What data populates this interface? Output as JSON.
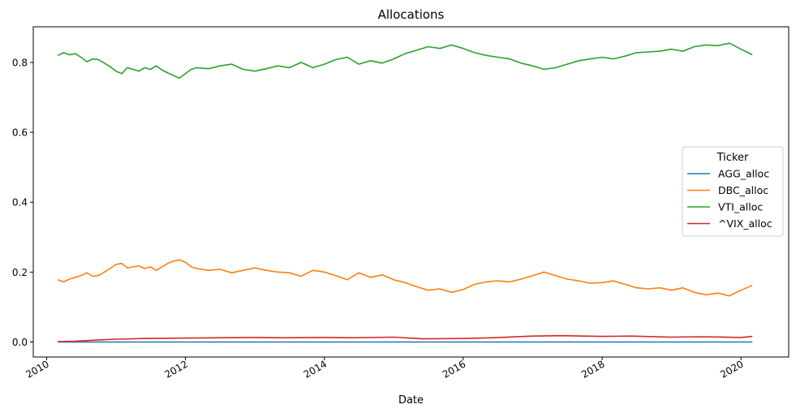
{
  "chart_data": {
    "type": "line",
    "title": "Allocations",
    "xlabel": "Date",
    "ylabel": "",
    "xlim": [
      "2009-10-23",
      "2020-09-08"
    ],
    "ylim": [
      -0.043,
      0.902
    ],
    "x_ticks": [
      "2010",
      "2012",
      "2014",
      "2016",
      "2018",
      "2020"
    ],
    "y_ticks": [
      "0.0",
      "0.2",
      "0.4",
      "0.6",
      "0.8"
    ],
    "grid": false,
    "legend": {
      "title": "Ticker",
      "placement": "center-right"
    },
    "series": [
      {
        "name": "AGG_alloc",
        "color": "#1f77b4",
        "points": [
          [
            "2010-03-01",
            0.0
          ],
          [
            "2015-01-01",
            0.0
          ],
          [
            "2020-03-01",
            0.0
          ]
        ]
      },
      {
        "name": "DBC_alloc",
        "color": "#ff7f0e",
        "points": [
          [
            "2010-03-01",
            0.178
          ],
          [
            "2010-04-01",
            0.172
          ],
          [
            "2010-05-01",
            0.18
          ],
          [
            "2010-06-01",
            0.185
          ],
          [
            "2010-07-01",
            0.19
          ],
          [
            "2010-08-01",
            0.198
          ],
          [
            "2010-09-01",
            0.188
          ],
          [
            "2010-10-01",
            0.19
          ],
          [
            "2010-11-01",
            0.2
          ],
          [
            "2010-12-01",
            0.21
          ],
          [
            "2011-01-01",
            0.222
          ],
          [
            "2011-02-01",
            0.225
          ],
          [
            "2011-03-01",
            0.212
          ],
          [
            "2011-04-01",
            0.215
          ],
          [
            "2011-05-01",
            0.218
          ],
          [
            "2011-06-01",
            0.21
          ],
          [
            "2011-07-01",
            0.215
          ],
          [
            "2011-08-01",
            0.205
          ],
          [
            "2011-09-01",
            0.215
          ],
          [
            "2011-10-01",
            0.225
          ],
          [
            "2011-11-01",
            0.232
          ],
          [
            "2011-12-01",
            0.235
          ],
          [
            "2012-01-01",
            0.228
          ],
          [
            "2012-02-01",
            0.215
          ],
          [
            "2012-03-01",
            0.21
          ],
          [
            "2012-05-01",
            0.205
          ],
          [
            "2012-07-01",
            0.208
          ],
          [
            "2012-09-01",
            0.198
          ],
          [
            "2012-11-01",
            0.205
          ],
          [
            "2013-01-01",
            0.212
          ],
          [
            "2013-03-01",
            0.205
          ],
          [
            "2013-05-01",
            0.2
          ],
          [
            "2013-07-01",
            0.198
          ],
          [
            "2013-09-01",
            0.188
          ],
          [
            "2013-11-01",
            0.205
          ],
          [
            "2014-01-01",
            0.2
          ],
          [
            "2014-03-01",
            0.19
          ],
          [
            "2014-05-01",
            0.178
          ],
          [
            "2014-07-01",
            0.198
          ],
          [
            "2014-09-01",
            0.185
          ],
          [
            "2014-11-01",
            0.192
          ],
          [
            "2015-01-01",
            0.178
          ],
          [
            "2015-03-01",
            0.17
          ],
          [
            "2015-05-01",
            0.158
          ],
          [
            "2015-07-01",
            0.148
          ],
          [
            "2015-09-01",
            0.152
          ],
          [
            "2015-11-01",
            0.142
          ],
          [
            "2016-01-01",
            0.15
          ],
          [
            "2016-03-01",
            0.165
          ],
          [
            "2016-05-01",
            0.172
          ],
          [
            "2016-07-01",
            0.175
          ],
          [
            "2016-09-01",
            0.172
          ],
          [
            "2016-11-01",
            0.18
          ],
          [
            "2017-01-01",
            0.19
          ],
          [
            "2017-03-01",
            0.2
          ],
          [
            "2017-05-01",
            0.19
          ],
          [
            "2017-07-01",
            0.18
          ],
          [
            "2017-09-01",
            0.175
          ],
          [
            "2017-11-01",
            0.168
          ],
          [
            "2018-01-01",
            0.17
          ],
          [
            "2018-03-01",
            0.175
          ],
          [
            "2018-05-01",
            0.165
          ],
          [
            "2018-07-01",
            0.155
          ],
          [
            "2018-09-01",
            0.152
          ],
          [
            "2018-11-01",
            0.155
          ],
          [
            "2019-01-01",
            0.148
          ],
          [
            "2019-03-01",
            0.155
          ],
          [
            "2019-05-01",
            0.142
          ],
          [
            "2019-07-01",
            0.135
          ],
          [
            "2019-09-01",
            0.14
          ],
          [
            "2019-11-01",
            0.132
          ],
          [
            "2020-01-01",
            0.148
          ],
          [
            "2020-03-01",
            0.162
          ]
        ]
      },
      {
        "name": "VTI_alloc",
        "color": "#2ca02c",
        "points": [
          [
            "2010-03-01",
            0.82
          ],
          [
            "2010-04-01",
            0.828
          ],
          [
            "2010-05-01",
            0.822
          ],
          [
            "2010-06-01",
            0.825
          ],
          [
            "2010-07-01",
            0.815
          ],
          [
            "2010-08-01",
            0.802
          ],
          [
            "2010-09-01",
            0.81
          ],
          [
            "2010-10-01",
            0.808
          ],
          [
            "2010-11-01",
            0.798
          ],
          [
            "2010-12-01",
            0.788
          ],
          [
            "2011-01-01",
            0.775
          ],
          [
            "2011-02-01",
            0.768
          ],
          [
            "2011-03-01",
            0.785
          ],
          [
            "2011-04-01",
            0.78
          ],
          [
            "2011-05-01",
            0.775
          ],
          [
            "2011-06-01",
            0.785
          ],
          [
            "2011-07-01",
            0.78
          ],
          [
            "2011-08-01",
            0.79
          ],
          [
            "2011-09-01",
            0.778
          ],
          [
            "2011-10-01",
            0.77
          ],
          [
            "2011-11-01",
            0.762
          ],
          [
            "2011-12-01",
            0.755
          ],
          [
            "2012-01-01",
            0.768
          ],
          [
            "2012-02-01",
            0.78
          ],
          [
            "2012-03-01",
            0.785
          ],
          [
            "2012-05-01",
            0.782
          ],
          [
            "2012-07-01",
            0.79
          ],
          [
            "2012-09-01",
            0.795
          ],
          [
            "2012-11-01",
            0.78
          ],
          [
            "2013-01-01",
            0.775
          ],
          [
            "2013-03-01",
            0.782
          ],
          [
            "2013-05-01",
            0.79
          ],
          [
            "2013-07-01",
            0.785
          ],
          [
            "2013-09-01",
            0.8
          ],
          [
            "2013-11-01",
            0.785
          ],
          [
            "2014-01-01",
            0.795
          ],
          [
            "2014-03-01",
            0.808
          ],
          [
            "2014-05-01",
            0.815
          ],
          [
            "2014-07-01",
            0.795
          ],
          [
            "2014-09-01",
            0.805
          ],
          [
            "2014-11-01",
            0.798
          ],
          [
            "2015-01-01",
            0.81
          ],
          [
            "2015-03-01",
            0.825
          ],
          [
            "2015-05-01",
            0.835
          ],
          [
            "2015-07-01",
            0.845
          ],
          [
            "2015-09-01",
            0.84
          ],
          [
            "2015-11-01",
            0.85
          ],
          [
            "2016-01-01",
            0.84
          ],
          [
            "2016-03-01",
            0.828
          ],
          [
            "2016-05-01",
            0.82
          ],
          [
            "2016-07-01",
            0.815
          ],
          [
            "2016-09-01",
            0.81
          ],
          [
            "2016-11-01",
            0.798
          ],
          [
            "2017-01-01",
            0.79
          ],
          [
            "2017-03-01",
            0.78
          ],
          [
            "2017-05-01",
            0.785
          ],
          [
            "2017-07-01",
            0.795
          ],
          [
            "2017-09-01",
            0.805
          ],
          [
            "2017-11-01",
            0.81
          ],
          [
            "2018-01-01",
            0.815
          ],
          [
            "2018-03-01",
            0.81
          ],
          [
            "2018-05-01",
            0.818
          ],
          [
            "2018-07-01",
            0.828
          ],
          [
            "2018-09-01",
            0.83
          ],
          [
            "2018-11-01",
            0.832
          ],
          [
            "2019-01-01",
            0.838
          ],
          [
            "2019-03-01",
            0.832
          ],
          [
            "2019-05-01",
            0.845
          ],
          [
            "2019-07-01",
            0.85
          ],
          [
            "2019-09-01",
            0.848
          ],
          [
            "2019-11-01",
            0.855
          ],
          [
            "2020-01-01",
            0.838
          ],
          [
            "2020-03-01",
            0.822
          ]
        ]
      },
      {
        "name": "^VIX_alloc",
        "color": "#d62728",
        "points": [
          [
            "2010-03-01",
            0.001
          ],
          [
            "2010-06-01",
            0.002
          ],
          [
            "2010-09-01",
            0.005
          ],
          [
            "2011-01-01",
            0.008
          ],
          [
            "2011-06-01",
            0.01
          ],
          [
            "2012-01-01",
            0.011
          ],
          [
            "2012-06-01",
            0.012
          ],
          [
            "2013-01-01",
            0.013
          ],
          [
            "2013-06-01",
            0.012
          ],
          [
            "2014-01-01",
            0.013
          ],
          [
            "2014-06-01",
            0.012
          ],
          [
            "2015-01-01",
            0.014
          ],
          [
            "2015-06-01",
            0.009
          ],
          [
            "2016-01-01",
            0.01
          ],
          [
            "2016-06-01",
            0.012
          ],
          [
            "2017-01-01",
            0.017
          ],
          [
            "2017-06-01",
            0.018
          ],
          [
            "2018-01-01",
            0.016
          ],
          [
            "2018-06-01",
            0.017
          ],
          [
            "2019-01-01",
            0.014
          ],
          [
            "2019-06-01",
            0.015
          ],
          [
            "2020-01-01",
            0.013
          ],
          [
            "2020-03-01",
            0.016
          ]
        ]
      }
    ]
  }
}
